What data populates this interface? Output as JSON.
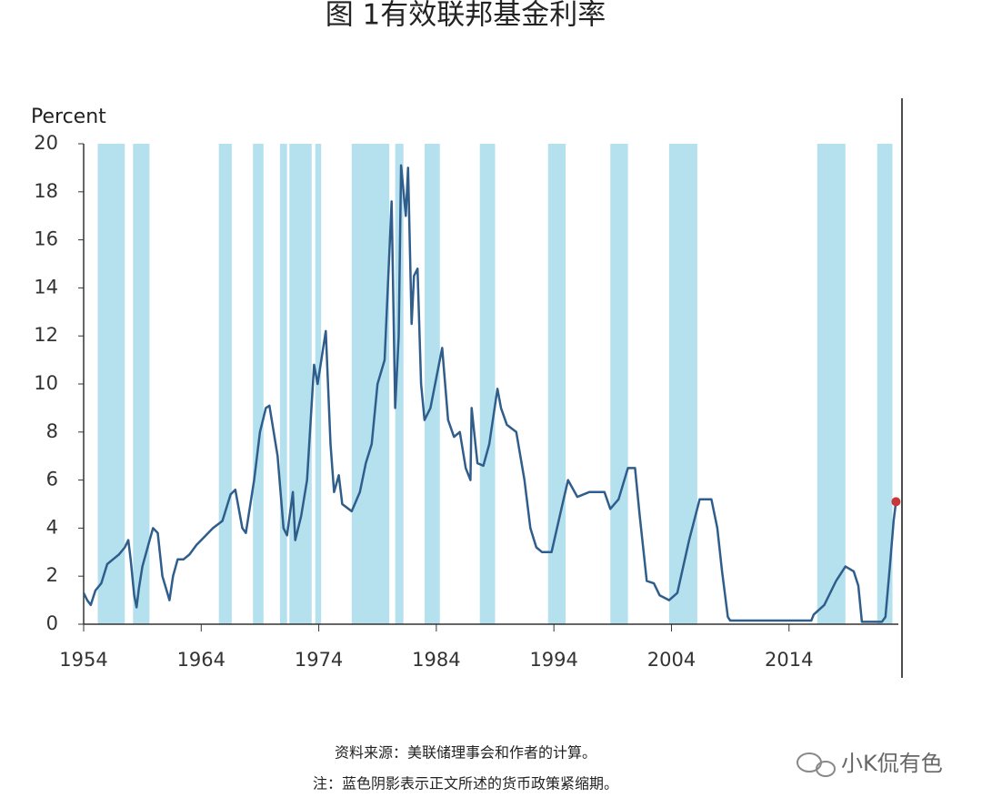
{
  "chart_data": {
    "type": "line",
    "title": "图 1有效联邦基金利率",
    "y_label": "Percent",
    "notes": [
      "资料来源：美联储理事会和作者的计算。",
      "注：蓝色阴影表示正文所述的货币政策紧缩期。"
    ],
    "watermark": "小K侃有色",
    "color": "#2f5d8c",
    "last_point_color": "#c8383a",
    "shade_color": "#b5e1ef",
    "shaded_periods": [
      [
        1955.2,
        1957.5
      ],
      [
        1958.2,
        1959.6
      ],
      [
        1965.5,
        1966.6
      ],
      [
        1968.4,
        1969.3
      ],
      [
        1970.7,
        1971.3
      ],
      [
        1971.5,
        1973.4
      ],
      [
        1973.7,
        1974.2
      ],
      [
        1976.8,
        1980.0
      ],
      [
        1980.5,
        1981.2
      ],
      [
        1983.0,
        1984.3
      ],
      [
        1987.7,
        1989.0
      ],
      [
        1993.5,
        1995.0
      ],
      [
        1998.8,
        2000.3
      ],
      [
        2003.8,
        2006.2
      ],
      [
        2016.4,
        2018.8
      ],
      [
        2021.5,
        2022.8
      ]
    ],
    "x": [
      1954.0,
      1954.3,
      1954.6,
      1955.0,
      1955.5,
      1956.0,
      1956.5,
      1957.0,
      1957.5,
      1957.8,
      1958.0,
      1958.3,
      1958.5,
      1958.7,
      1959.0,
      1959.5,
      1959.9,
      1960.3,
      1960.7,
      1961.0,
      1961.3,
      1961.6,
      1962.0,
      1962.5,
      1963.0,
      1963.6,
      1964.0,
      1965.0,
      1965.8,
      1966.5,
      1966.9,
      1967.5,
      1967.8,
      1968.5,
      1969.0,
      1969.5,
      1969.8,
      1970.5,
      1971.0,
      1971.3,
      1971.8,
      1972.0,
      1972.5,
      1973.0,
      1973.6,
      1973.9,
      1974.6,
      1975.0,
      1975.3,
      1975.7,
      1976.0,
      1976.8,
      1977.5,
      1978.0,
      1978.5,
      1979.0,
      1979.6,
      1980.2,
      1980.5,
      1980.8,
      1981.0,
      1981.4,
      1981.6,
      1981.9,
      1982.1,
      1982.4,
      1982.7,
      1983.0,
      1983.5,
      1984.5,
      1985.0,
      1985.5,
      1986.0,
      1986.5,
      1986.9,
      1987.0,
      1987.5,
      1988.0,
      1988.5,
      1989.2,
      1989.5,
      1990.0,
      1990.8,
      1991.5,
      1992.0,
      1992.5,
      1993.0,
      1993.8,
      1994.5,
      1995.2,
      1996.0,
      1997.0,
      1998.3,
      1998.8,
      1999.5,
      2000.3,
      2000.9,
      2001.3,
      2001.9,
      2002.5,
      2003.0,
      2003.8,
      2004.5,
      2005.5,
      2006.4,
      2007.4,
      2007.9,
      2008.3,
      2008.8,
      2009.0,
      2012.0,
      2015.9,
      2016.1,
      2017.0,
      2018.0,
      2018.8,
      2019.5,
      2019.9,
      2020.2,
      2021.9,
      2022.2,
      2022.6,
      2022.9,
      2023.1
    ],
    "values": [
      1.3,
      1.0,
      0.8,
      1.4,
      1.7,
      2.5,
      2.7,
      2.9,
      3.2,
      3.5,
      2.7,
      1.2,
      0.7,
      1.5,
      2.4,
      3.3,
      4.0,
      3.8,
      2.0,
      1.5,
      1.0,
      2.0,
      2.7,
      2.7,
      2.9,
      3.3,
      3.5,
      4.0,
      4.3,
      5.4,
      5.6,
      4.0,
      3.8,
      6.0,
      8.0,
      9.0,
      9.1,
      7.0,
      4.0,
      3.7,
      5.5,
      3.5,
      4.5,
      6.0,
      10.8,
      10.0,
      12.2,
      7.5,
      5.5,
      6.2,
      5.0,
      4.7,
      5.5,
      6.7,
      7.5,
      10.0,
      11.0,
      17.6,
      9.0,
      12.0,
      19.1,
      17.0,
      19.0,
      12.5,
      14.5,
      14.8,
      10.0,
      8.5,
      9.0,
      11.5,
      8.5,
      7.8,
      8.0,
      6.5,
      6.0,
      9.0,
      6.7,
      6.6,
      7.5,
      9.8,
      9.0,
      8.3,
      8.0,
      6.0,
      4.0,
      3.2,
      3.0,
      3.0,
      4.5,
      6.0,
      5.3,
      5.5,
      5.5,
      4.8,
      5.2,
      6.5,
      6.5,
      4.5,
      1.8,
      1.7,
      1.2,
      1.0,
      1.3,
      3.5,
      5.2,
      5.2,
      4.0,
      2.2,
      0.3,
      0.15,
      0.15,
      0.15,
      0.4,
      0.8,
      1.8,
      2.4,
      2.2,
      1.6,
      0.1,
      0.1,
      0.3,
      2.5,
      4.3,
      5.1
    ],
    "xlim": [
      1954,
      2023.3
    ],
    "ylim": [
      0,
      20
    ],
    "xticks": [
      1954,
      1964,
      1974,
      1984,
      1994,
      2004,
      2014
    ],
    "yticks": [
      0,
      2,
      4,
      6,
      8,
      10,
      12,
      14,
      16,
      18,
      20
    ],
    "grid": false
  }
}
